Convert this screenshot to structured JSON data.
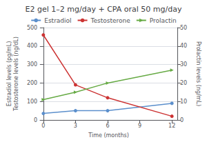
{
  "chart_data": {
    "type": "line",
    "title": "E2 gel 1–2 mg/day + CPA oral 50 mg/day",
    "xlabel": "Time (months)",
    "ylabel": "Estradiol levels (pg/mL)\nTestosterone levels (ng/dL)",
    "y2label": "Prolactin levels (ng/mL)",
    "x": [
      0,
      3,
      6,
      12
    ],
    "series": [
      {
        "name": "Estradiol",
        "color": "#5B8FCC",
        "marker": "circle",
        "values": [
          35,
          50,
          50,
          90
        ]
      },
      {
        "name": "Testosterone",
        "color": "#CC3333",
        "marker": "circle",
        "values": [
          460,
          190,
          120,
          20
        ]
      },
      {
        "name": "Prolactin",
        "color": "#66AA44",
        "marker": "triangle-right",
        "axis": "y2",
        "values": [
          11,
          15,
          20,
          27
        ]
      }
    ],
    "xlim": [
      -0.3,
      12.5
    ],
    "xticks": [
      0,
      3,
      6,
      9,
      12
    ],
    "ylim": [
      0,
      500
    ],
    "yticks": [
      0,
      100,
      200,
      300,
      400,
      500
    ],
    "y2lim": [
      0,
      50
    ],
    "y2ticks": [
      0,
      10,
      20,
      30,
      40,
      50
    ],
    "grid": true,
    "legend": "top"
  }
}
